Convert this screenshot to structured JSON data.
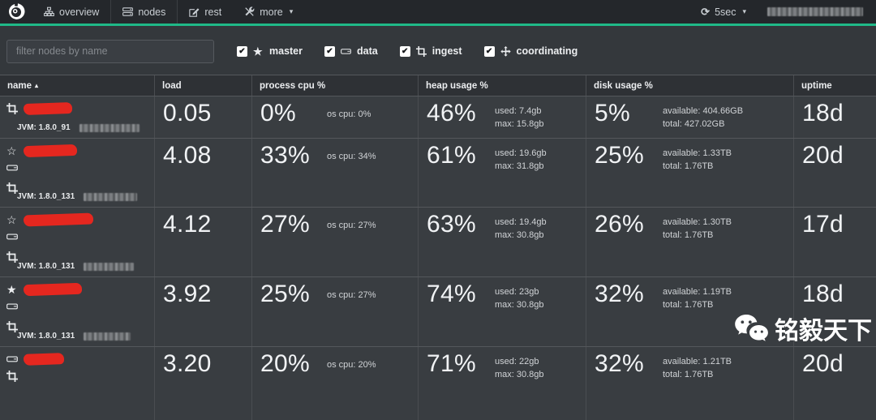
{
  "colors": {
    "accent_green": "#1fb988",
    "redaction_red": "#e5271f",
    "row_bg": "#393d41",
    "header_bg": "#2e3135",
    "navbar_bg": "#24272b"
  },
  "navbar": {
    "items": [
      {
        "label": "overview",
        "icon": "sitemap-icon",
        "active": false
      },
      {
        "label": "nodes",
        "icon": "server-icon",
        "active": true
      },
      {
        "label": "rest",
        "icon": "edit-icon",
        "active": false
      },
      {
        "label": "more",
        "icon": "tools-icon",
        "active": false,
        "caret": "▾"
      }
    ],
    "refresh": {
      "icon": "refresh-icon",
      "label": "5sec",
      "caret": "▾"
    },
    "cluster_name_redacted": true
  },
  "filter": {
    "placeholder": "filter nodes by name"
  },
  "role_filters": [
    {
      "label": "master",
      "icon": "star-icon",
      "checked": true,
      "check_glyph": "✔"
    },
    {
      "label": "data",
      "icon": "hdd-icon",
      "checked": true,
      "check_glyph": "✔"
    },
    {
      "label": "ingest",
      "icon": "crop-icon",
      "checked": true,
      "check_glyph": "✔"
    },
    {
      "label": "coordinating",
      "icon": "arrows-icon",
      "checked": true,
      "check_glyph": "✔"
    }
  ],
  "table": {
    "columns": [
      "name",
      "load",
      "process cpu %",
      "heap usage %",
      "disk usage %",
      "uptime"
    ],
    "sort_column": "name",
    "sort_direction": "asc",
    "sort_caret": "▴"
  },
  "nodes": [
    {
      "name_redacted": true,
      "roles": [
        "ingest"
      ],
      "jvm": "JVM: 1.8.0_91",
      "load": "0.05",
      "cpu": "0%",
      "os_cpu": "os cpu: 0%",
      "heap": "46%",
      "heap_used": "used: 7.4gb",
      "heap_max": "max: 15.8gb",
      "disk": "5%",
      "disk_available": "available: 404.66GB",
      "disk_total": "total: 427.02GB",
      "uptime": "18d"
    },
    {
      "name_redacted": true,
      "roles": [
        "master-eligible",
        "data",
        "ingest"
      ],
      "jvm": "JVM: 1.8.0_131",
      "load": "4.08",
      "cpu": "33%",
      "os_cpu": "os cpu: 34%",
      "heap": "61%",
      "heap_used": "used: 19.6gb",
      "heap_max": "max: 31.8gb",
      "disk": "25%",
      "disk_available": "available: 1.33TB",
      "disk_total": "total: 1.76TB",
      "uptime": "20d"
    },
    {
      "name_redacted": true,
      "roles": [
        "master-eligible",
        "data",
        "ingest"
      ],
      "jvm": "JVM: 1.8.0_131",
      "load": "4.12",
      "cpu": "27%",
      "os_cpu": "os cpu: 27%",
      "heap": "63%",
      "heap_used": "used: 19.4gb",
      "heap_max": "max: 30.8gb",
      "disk": "26%",
      "disk_available": "available: 1.30TB",
      "disk_total": "total: 1.76TB",
      "uptime": "17d"
    },
    {
      "name_redacted": true,
      "roles": [
        "master",
        "data",
        "ingest"
      ],
      "jvm": "JVM: 1.8.0_131",
      "load": "3.92",
      "cpu": "25%",
      "os_cpu": "os cpu: 27%",
      "heap": "74%",
      "heap_used": "used: 23gb",
      "heap_max": "max: 30.8gb",
      "disk": "32%",
      "disk_available": "available: 1.19TB",
      "disk_total": "total: 1.76TB",
      "uptime": "18d"
    },
    {
      "name_redacted": true,
      "roles": [
        "data",
        "ingest"
      ],
      "jvm": "",
      "load": "3.20",
      "cpu": "20%",
      "os_cpu": "os cpu: 20%",
      "heap": "71%",
      "heap_used": "used: 22gb",
      "heap_max": "max: 30.8gb",
      "disk": "32%",
      "disk_available": "available: 1.21TB",
      "disk_total": "total: 1.76TB",
      "uptime": "20d"
    }
  ],
  "watermark": {
    "icon": "wechat-icon",
    "text": "铭毅天下"
  }
}
